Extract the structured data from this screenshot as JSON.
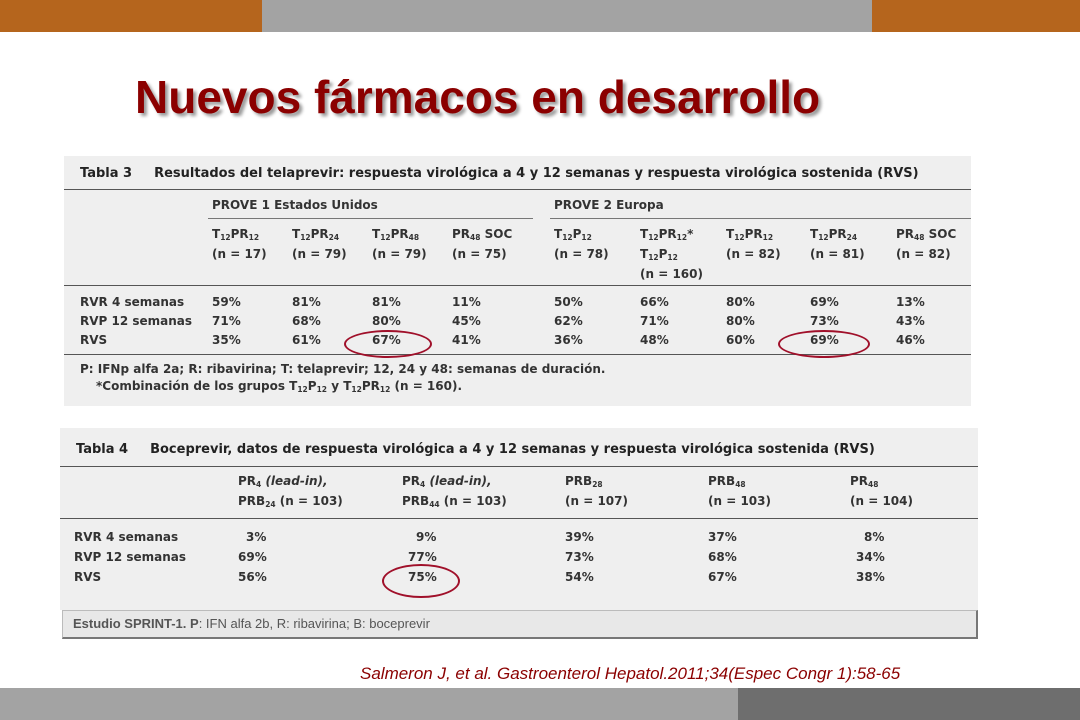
{
  "slide": {
    "title": "Nuevos fármacos en desarrollo",
    "colors": {
      "accent_orange": "#b5651d",
      "bar_gray": "#9e9e9e",
      "title_red": "#8b0000"
    },
    "citation": "Salmeron J, et al. Gastroenterol Hepatol.2011;34(Espec Congr 1):58-65"
  },
  "table3": {
    "label": "Tabla 3",
    "caption": "Resultados del telaprevir: respuesta virológica a 4 y 12 semanas y respuesta virológica sostenida (RVS)",
    "groups": [
      "PROVE 1 Estados Unidos",
      "PROVE 2 Europa"
    ],
    "columns": [
      {
        "main": "T",
        "s1": "12",
        "m2": "PR",
        "s2": "12",
        "tail": "",
        "n": "(n = 17)"
      },
      {
        "main": "T",
        "s1": "12",
        "m2": "PR",
        "s2": "24",
        "tail": "",
        "n": "(n = 79)"
      },
      {
        "main": "T",
        "s1": "12",
        "m2": "PR",
        "s2": "48",
        "tail": "",
        "n": "(n = 79)"
      },
      {
        "main": "PR",
        "s1": "48",
        "m2": " SOC",
        "s2": "",
        "tail": "",
        "n": "(n = 75)"
      },
      {
        "main": "T",
        "s1": "12",
        "m2": "P",
        "s2": "12",
        "tail": "",
        "n": "(n = 78)"
      },
      {
        "main": "T",
        "s1": "12",
        "m2": "PR",
        "s2": "12",
        "tail": "*",
        "n": "(n = 160)"
      },
      {
        "main": "T",
        "s1": "12",
        "m2": "PR",
        "s2": "12",
        "tail": "",
        "n": "(n = 82)"
      },
      {
        "main": "T",
        "s1": "12",
        "m2": "PR",
        "s2": "24",
        "tail": "",
        "n": "(n = 81)"
      },
      {
        "main": "PR",
        "s1": "48",
        "m2": " SOC",
        "s2": "",
        "tail": "",
        "n": "(n = 82)"
      }
    ],
    "extra_line": {
      "main": "T",
      "s1": "12",
      "m2": "P",
      "s2": "12"
    },
    "rows": [
      {
        "label": "RVR 4 semanas",
        "values": [
          "59%",
          "81%",
          "81%",
          "11%",
          "50%",
          "66%",
          "80%",
          "69%",
          "13%"
        ]
      },
      {
        "label": "RVP 12 semanas",
        "values": [
          "71%",
          "68%",
          "80%",
          "45%",
          "62%",
          "71%",
          "80%",
          "73%",
          "43%"
        ]
      },
      {
        "label": "RVS",
        "values": [
          "35%",
          "61%",
          "67%",
          "41%",
          "36%",
          "48%",
          "60%",
          "69%",
          "46%"
        ]
      }
    ],
    "note1": "P: IFNp alfa 2a; R: ribavirina; T: telaprevir; 12, 24 y 48: semanas de duración.",
    "note2": {
      "a": "*Combinación de los grupos T",
      "s1": "12",
      "b": "P",
      "s2": "12",
      "c": " y T",
      "s3": "12",
      "d": "PR",
      "s4": "12",
      "e": " (n = 160)."
    }
  },
  "table4": {
    "label": "Tabla 4",
    "caption": "Boceprevir, datos de respuesta virológica a 4 y 12 semanas y respuesta virológica sostenida (RVS)",
    "columns": [
      {
        "a": "PR",
        "s1": "4",
        "b": " (lead-in),",
        "c": "PRB",
        "s2": "24",
        "d": " (n = 103)"
      },
      {
        "a": "PR",
        "s1": "4",
        "b": " (lead-in),",
        "c": "PRB",
        "s2": "44",
        "d": " (n = 103)"
      },
      {
        "a": "PRB",
        "s1": "28",
        "b": "",
        "c": "(n = 107)",
        "s2": "",
        "d": ""
      },
      {
        "a": "PRB",
        "s1": "48",
        "b": "",
        "c": "(n = 103)",
        "s2": "",
        "d": ""
      },
      {
        "a": "PR",
        "s1": "48",
        "b": "",
        "c": "(n = 104)",
        "s2": "",
        "d": ""
      }
    ],
    "rows": [
      {
        "label": "RVR 4 semanas",
        "values": [
          "3%",
          "9%",
          "39%",
          "37%",
          "8%"
        ]
      },
      {
        "label": "RVP 12 semanas",
        "values": [
          "69%",
          "77%",
          "73%",
          "68%",
          "34%"
        ]
      },
      {
        "label": "RVS",
        "values": [
          "56%",
          "75%",
          "54%",
          "67%",
          "38%"
        ]
      }
    ]
  },
  "footer": {
    "study": "Estudio SPRINT-1.",
    "p_label": "P",
    "detail": ": IFN alfa 2b, R: ribavirina; B: boceprevir"
  }
}
